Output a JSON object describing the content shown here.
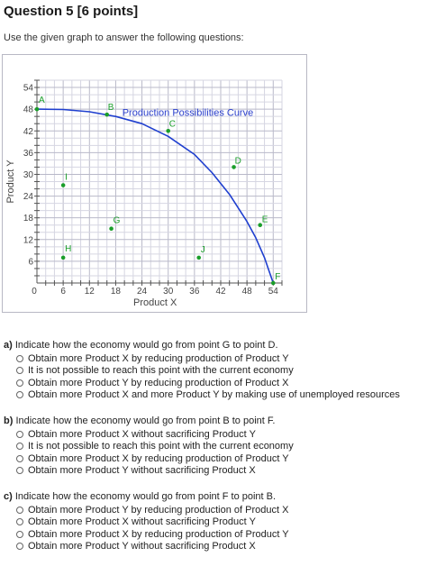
{
  "question": {
    "title": "Question 5 [6 points]",
    "intro": "Use the given graph to answer the following questions:"
  },
  "chart_data": {
    "type": "line",
    "title": "",
    "xlabel": "Product X",
    "ylabel": "Product Y",
    "xlim": [
      0,
      56
    ],
    "ylim": [
      0,
      56
    ],
    "xticks": [
      "0",
      "6",
      "12",
      "18",
      "24",
      "30",
      "36",
      "42",
      "48",
      "54"
    ],
    "yticks": [
      "6",
      "12",
      "18",
      "24",
      "30",
      "36",
      "42",
      "48",
      "54"
    ],
    "grid": true,
    "curve_label": "Production Possibilities Curve",
    "curve": {
      "x": [
        0,
        6,
        12,
        18,
        24,
        30,
        36,
        40,
        44,
        48,
        50,
        52,
        53,
        54
      ],
      "y": [
        48,
        47.9,
        47.3,
        46,
        44,
        40.5,
        35.5,
        30.5,
        24.5,
        17,
        12.5,
        7,
        3.5,
        0
      ]
    },
    "points": [
      {
        "label": "A",
        "x": 0,
        "y": 48,
        "color": "#1a9e2a"
      },
      {
        "label": "B",
        "x": 16,
        "y": 46.5,
        "color": "#1a9e2a"
      },
      {
        "label": "C",
        "x": 30,
        "y": 42,
        "color": "#1a9e2a"
      },
      {
        "label": "D",
        "x": 45,
        "y": 32,
        "color": "#1a9e2a"
      },
      {
        "label": "E",
        "x": 51,
        "y": 16,
        "color": "#1a9e2a"
      },
      {
        "label": "F",
        "x": 54,
        "y": 0,
        "color": "#1a9e2a"
      },
      {
        "label": "G",
        "x": 17,
        "y": 15,
        "color": "#1a9e2a"
      },
      {
        "label": "H",
        "x": 6,
        "y": 7,
        "color": "#1a9e2a"
      },
      {
        "label": "I",
        "x": 6,
        "y": 27,
        "color": "#1a9e2a"
      },
      {
        "label": "J",
        "x": 37,
        "y": 7,
        "color": "#1a9e2a"
      }
    ]
  },
  "questions": [
    {
      "letter": "a)",
      "prompt": " Indicate how the economy would go from point G to point D.",
      "options": [
        "Obtain more Product X by reducing production of Product Y",
        "It is not possible to reach this point with the current economy",
        "Obtain more Product Y by reducing production of Product X",
        "Obtain more Product X and more Product Y by making use of unemployed resources"
      ]
    },
    {
      "letter": "b)",
      "prompt": " Indicate how the economy would go from point B to point F.",
      "options": [
        "Obtain more Product X without sacrificing Product Y",
        "It is not possible to reach this point with the current economy",
        "Obtain more Product X by reducing production of Product Y",
        "Obtain more Product Y without sacrificing Product X"
      ]
    },
    {
      "letter": "c)",
      "prompt": " Indicate how the economy would go from point F to point B.",
      "options": [
        "Obtain more Product Y by reducing production of Product X",
        "Obtain more Product X without sacrificing Product Y",
        "Obtain more Product X by reducing production of Product Y",
        "Obtain more Product Y without sacrificing Product X"
      ]
    }
  ]
}
